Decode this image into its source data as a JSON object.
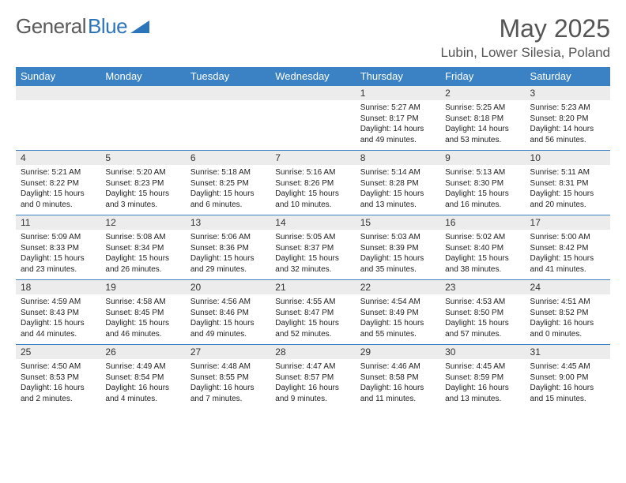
{
  "logo": {
    "text1": "General",
    "text2": "Blue"
  },
  "title": "May 2025",
  "location": "Lubin, Lower Silesia, Poland",
  "colors": {
    "header_bg": "#3a82c4",
    "header_text": "#ffffff",
    "daynum_bg": "#ececec",
    "logo_gray": "#5a5a5a",
    "logo_blue": "#2d75bb"
  },
  "day_names": [
    "Sunday",
    "Monday",
    "Tuesday",
    "Wednesday",
    "Thursday",
    "Friday",
    "Saturday"
  ],
  "weeks": [
    {
      "nums": [
        "",
        "",
        "",
        "",
        "1",
        "2",
        "3"
      ],
      "cells": [
        {},
        {},
        {},
        {},
        {
          "sunrise": "5:27 AM",
          "sunset": "8:17 PM",
          "daylight": "14 hours and 49 minutes."
        },
        {
          "sunrise": "5:25 AM",
          "sunset": "8:18 PM",
          "daylight": "14 hours and 53 minutes."
        },
        {
          "sunrise": "5:23 AM",
          "sunset": "8:20 PM",
          "daylight": "14 hours and 56 minutes."
        }
      ]
    },
    {
      "nums": [
        "4",
        "5",
        "6",
        "7",
        "8",
        "9",
        "10"
      ],
      "cells": [
        {
          "sunrise": "5:21 AM",
          "sunset": "8:22 PM",
          "daylight": "15 hours and 0 minutes."
        },
        {
          "sunrise": "5:20 AM",
          "sunset": "8:23 PM",
          "daylight": "15 hours and 3 minutes."
        },
        {
          "sunrise": "5:18 AM",
          "sunset": "8:25 PM",
          "daylight": "15 hours and 6 minutes."
        },
        {
          "sunrise": "5:16 AM",
          "sunset": "8:26 PM",
          "daylight": "15 hours and 10 minutes."
        },
        {
          "sunrise": "5:14 AM",
          "sunset": "8:28 PM",
          "daylight": "15 hours and 13 minutes."
        },
        {
          "sunrise": "5:13 AM",
          "sunset": "8:30 PM",
          "daylight": "15 hours and 16 minutes."
        },
        {
          "sunrise": "5:11 AM",
          "sunset": "8:31 PM",
          "daylight": "15 hours and 20 minutes."
        }
      ]
    },
    {
      "nums": [
        "11",
        "12",
        "13",
        "14",
        "15",
        "16",
        "17"
      ],
      "cells": [
        {
          "sunrise": "5:09 AM",
          "sunset": "8:33 PM",
          "daylight": "15 hours and 23 minutes."
        },
        {
          "sunrise": "5:08 AM",
          "sunset": "8:34 PM",
          "daylight": "15 hours and 26 minutes."
        },
        {
          "sunrise": "5:06 AM",
          "sunset": "8:36 PM",
          "daylight": "15 hours and 29 minutes."
        },
        {
          "sunrise": "5:05 AM",
          "sunset": "8:37 PM",
          "daylight": "15 hours and 32 minutes."
        },
        {
          "sunrise": "5:03 AM",
          "sunset": "8:39 PM",
          "daylight": "15 hours and 35 minutes."
        },
        {
          "sunrise": "5:02 AM",
          "sunset": "8:40 PM",
          "daylight": "15 hours and 38 minutes."
        },
        {
          "sunrise": "5:00 AM",
          "sunset": "8:42 PM",
          "daylight": "15 hours and 41 minutes."
        }
      ]
    },
    {
      "nums": [
        "18",
        "19",
        "20",
        "21",
        "22",
        "23",
        "24"
      ],
      "cells": [
        {
          "sunrise": "4:59 AM",
          "sunset": "8:43 PM",
          "daylight": "15 hours and 44 minutes."
        },
        {
          "sunrise": "4:58 AM",
          "sunset": "8:45 PM",
          "daylight": "15 hours and 46 minutes."
        },
        {
          "sunrise": "4:56 AM",
          "sunset": "8:46 PM",
          "daylight": "15 hours and 49 minutes."
        },
        {
          "sunrise": "4:55 AM",
          "sunset": "8:47 PM",
          "daylight": "15 hours and 52 minutes."
        },
        {
          "sunrise": "4:54 AM",
          "sunset": "8:49 PM",
          "daylight": "15 hours and 55 minutes."
        },
        {
          "sunrise": "4:53 AM",
          "sunset": "8:50 PM",
          "daylight": "15 hours and 57 minutes."
        },
        {
          "sunrise": "4:51 AM",
          "sunset": "8:52 PM",
          "daylight": "16 hours and 0 minutes."
        }
      ]
    },
    {
      "nums": [
        "25",
        "26",
        "27",
        "28",
        "29",
        "30",
        "31"
      ],
      "cells": [
        {
          "sunrise": "4:50 AM",
          "sunset": "8:53 PM",
          "daylight": "16 hours and 2 minutes."
        },
        {
          "sunrise": "4:49 AM",
          "sunset": "8:54 PM",
          "daylight": "16 hours and 4 minutes."
        },
        {
          "sunrise": "4:48 AM",
          "sunset": "8:55 PM",
          "daylight": "16 hours and 7 minutes."
        },
        {
          "sunrise": "4:47 AM",
          "sunset": "8:57 PM",
          "daylight": "16 hours and 9 minutes."
        },
        {
          "sunrise": "4:46 AM",
          "sunset": "8:58 PM",
          "daylight": "16 hours and 11 minutes."
        },
        {
          "sunrise": "4:45 AM",
          "sunset": "8:59 PM",
          "daylight": "16 hours and 13 minutes."
        },
        {
          "sunrise": "4:45 AM",
          "sunset": "9:00 PM",
          "daylight": "16 hours and 15 minutes."
        }
      ]
    }
  ],
  "labels": {
    "sunrise": "Sunrise:",
    "sunset": "Sunset:",
    "daylight": "Daylight:"
  }
}
